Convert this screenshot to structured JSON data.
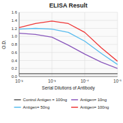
{
  "chart_data": {
    "type": "line",
    "title": "ELISA Result",
    "x_label": "Serial Dilutions of Antibody",
    "y_label": "O.D.",
    "log": "x",
    "grid": true,
    "legend": "bottom",
    "x": [
      0.01,
      0.0031622776601683794,
      0.001,
      0.00031622776601683794,
      0.0001,
      3.1622776601683795e-05,
      1e-05
    ],
    "xlim": [
      0.01,
      1e-05
    ],
    "xticks": [
      {
        "value": 0.01,
        "label": "10⁻²"
      },
      {
        "value": 0.001,
        "label": "10⁻³"
      },
      {
        "value": 0.0001,
        "label": "10⁻⁴"
      },
      {
        "value": 1e-05,
        "label": "10⁻⁵"
      }
    ],
    "ylim": [
      0,
      1.6
    ],
    "yticks": [
      {
        "value": 0,
        "label": "0.0"
      },
      0.2,
      0.4,
      0.6,
      0.8,
      {
        "value": 1.0,
        "label": "1.0"
      },
      1.2,
      1.4,
      1.6
    ],
    "series": [
      {
        "name": "Control Antigen = 100ng",
        "color": "#555555",
        "values": [
          0.07,
          0.07,
          0.07,
          0.07,
          0.07,
          0.07,
          0.07
        ]
      },
      {
        "name": "Antigen= 10ng",
        "color": "#8855bb",
        "values": [
          1.08,
          1.05,
          0.98,
          0.78,
          0.56,
          0.36,
          0.2
        ]
      },
      {
        "name": "Antigen= 50ng",
        "color": "#55bbee",
        "values": [
          1.18,
          1.2,
          1.18,
          1.1,
          0.88,
          0.58,
          0.3
        ]
      },
      {
        "name": "Antigen= 100ng",
        "color": "#ee3333",
        "values": [
          1.22,
          1.32,
          1.38,
          1.32,
          1.1,
          0.72,
          0.38
        ]
      }
    ]
  }
}
